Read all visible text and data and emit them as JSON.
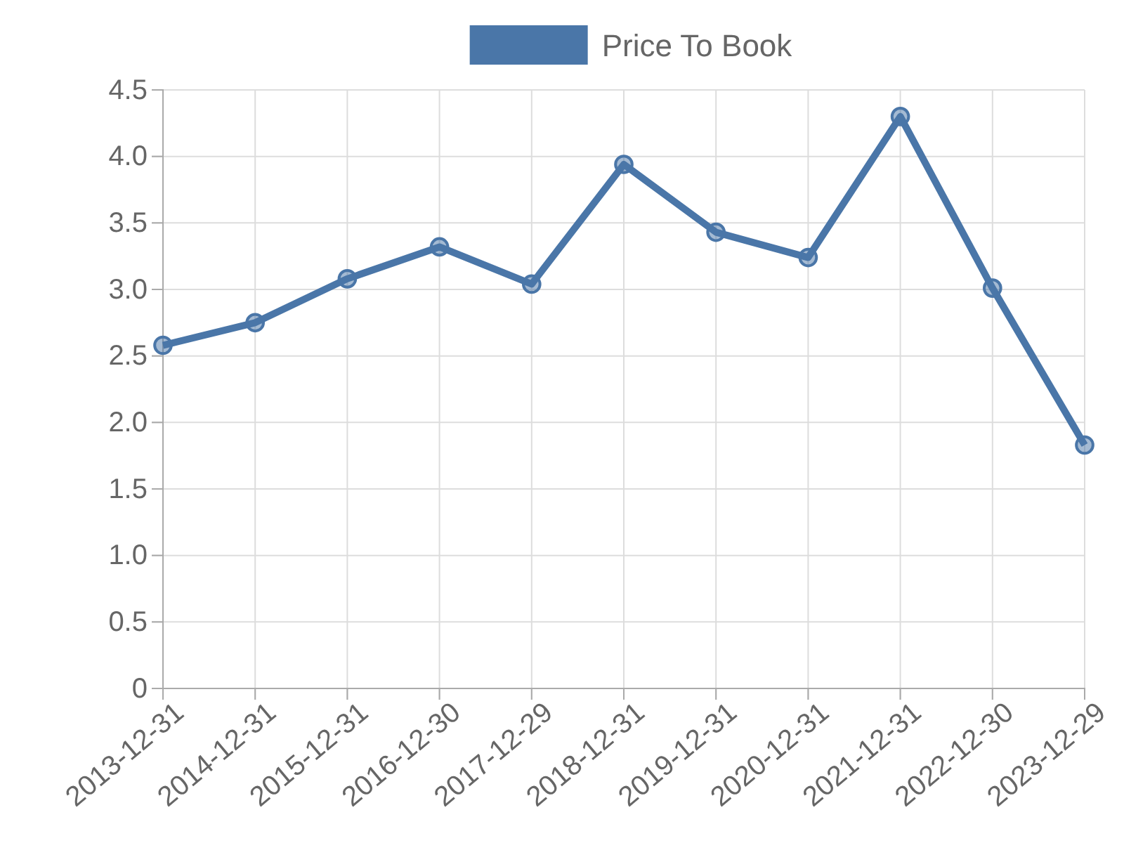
{
  "chart_data": {
    "type": "line",
    "categories": [
      "2013-12-31",
      "2014-12-31",
      "2015-12-31",
      "2016-12-30",
      "2017-12-29",
      "2018-12-31",
      "2019-12-31",
      "2020-12-31",
      "2021-12-31",
      "2022-12-30",
      "2023-12-29"
    ],
    "series": [
      {
        "name": "Price To Book",
        "color": "#4a76a8",
        "values": [
          2.58,
          2.75,
          3.08,
          3.32,
          3.04,
          3.94,
          3.43,
          3.24,
          4.3,
          3.01,
          1.83
        ]
      }
    ],
    "ylim": [
      0,
      4.5
    ],
    "yticks": [
      0,
      0.5,
      {
        "value": 1,
        "label": "1.0"
      },
      1.5,
      {
        "value": 2,
        "label": "2.0"
      },
      2.5,
      {
        "value": 3,
        "label": "3.0"
      },
      3.5,
      {
        "value": 4,
        "label": "4.0"
      },
      4.5
    ],
    "grid": true,
    "legend": "top",
    "marker": "circle",
    "line_style": "solid"
  }
}
